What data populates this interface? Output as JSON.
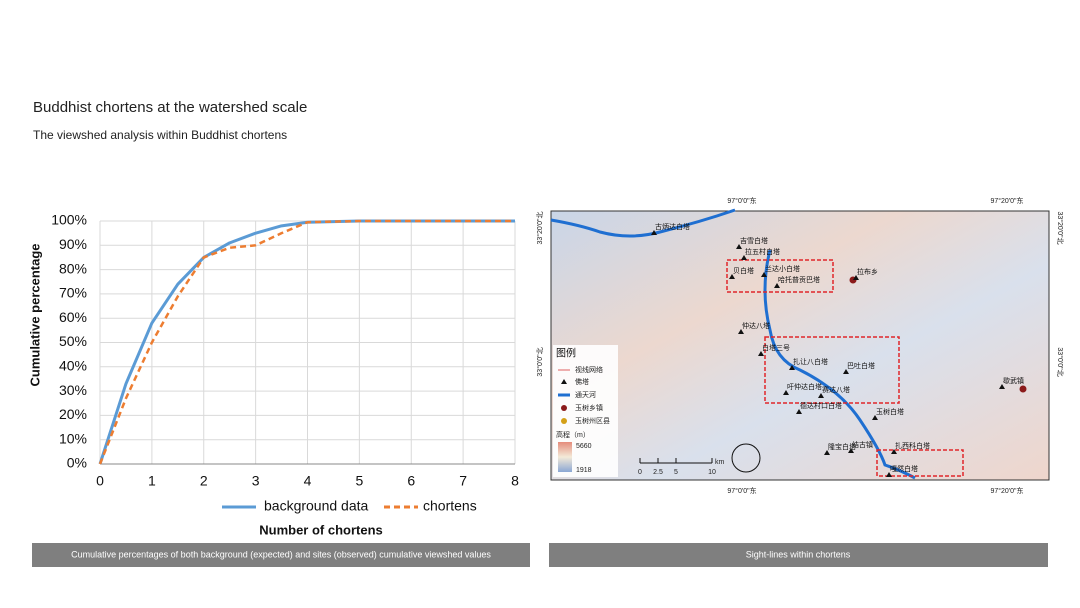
{
  "header": {
    "title": "Buddhist chortens at the watershed scale",
    "subtitle": "The viewshed analysis within Buddhist chortens"
  },
  "chart_data": {
    "type": "line",
    "x_label": "Number of chortens",
    "y_label": "Cumulative percentage",
    "x": [
      0,
      0.5,
      1,
      1.5,
      2,
      2.5,
      3,
      3.5,
      4,
      5,
      6,
      7,
      8
    ],
    "series": [
      {
        "name": "background data",
        "color": "#5b9bd5",
        "dash": false,
        "values": [
          0,
          33,
          58,
          74,
          85,
          91,
          95,
          98,
          99.5,
          100,
          100,
          100,
          100
        ]
      },
      {
        "name": "chortens",
        "color": "#ed7d31",
        "dash": true,
        "values": [
          0,
          27,
          50,
          69,
          85,
          89,
          90,
          95,
          99.5,
          100,
          100,
          100,
          100
        ]
      }
    ],
    "xlim": [
      0,
      8
    ],
    "xticks": [
      0,
      1,
      2,
      3,
      4,
      5,
      6,
      7,
      8
    ],
    "ylim": [
      0,
      100
    ],
    "yticks": [
      {
        "value": 0,
        "label": "0%"
      },
      {
        "value": 10,
        "label": "10%"
      },
      {
        "value": 20,
        "label": "20%"
      },
      {
        "value": 30,
        "label": "30%"
      },
      {
        "value": 40,
        "label": "40%"
      },
      {
        "value": 50,
        "label": "50%"
      },
      {
        "value": 60,
        "label": "60%"
      },
      {
        "value": 70,
        "label": "70%"
      },
      {
        "value": 80,
        "label": "80%"
      },
      {
        "value": 90,
        "label": "90%"
      },
      {
        "value": 100,
        "label": "100%"
      }
    ],
    "grid": true,
    "legend": "bottom"
  },
  "captions": [
    "Cumulative percentages of both background (expected) and sites (observed) cumulative viewshed values",
    "Sight-lines within chortens"
  ],
  "map": {
    "coords": [
      "97°0'0\"东",
      "97°20'0\"东",
      "97°0'0\"东",
      "97°20'0\"东",
      "33°20'0\"北",
      "33°0'0\"北",
      "33°20'0\"北",
      "33°0'0\"北"
    ],
    "legend_title": "图例",
    "legend_items": [
      "视线网络",
      "佛塔",
      "通天河",
      "玉树乡镇",
      "玉树州区县",
      "高程（m）",
      "5660",
      "1918"
    ],
    "scale": [
      "0",
      "2.5",
      "5",
      "10",
      "km"
    ],
    "places": [
      "古炳达白塔",
      "吉雪白塔",
      "拉五村白塔",
      "贝白塔",
      "兰达小白塔",
      "哈托普贡巴塔",
      "拉布乡",
      "仲达八塔",
      "白塔三号",
      "扎让八白塔",
      "巴吐白塔",
      "吁仲达白塔",
      "赛达八塔",
      "德达村口白塔",
      "玉树白塔",
      "隆宝白塔",
      "结古镇",
      "扎西科白塔",
      "嘎然白塔",
      "歇武镇"
    ]
  }
}
